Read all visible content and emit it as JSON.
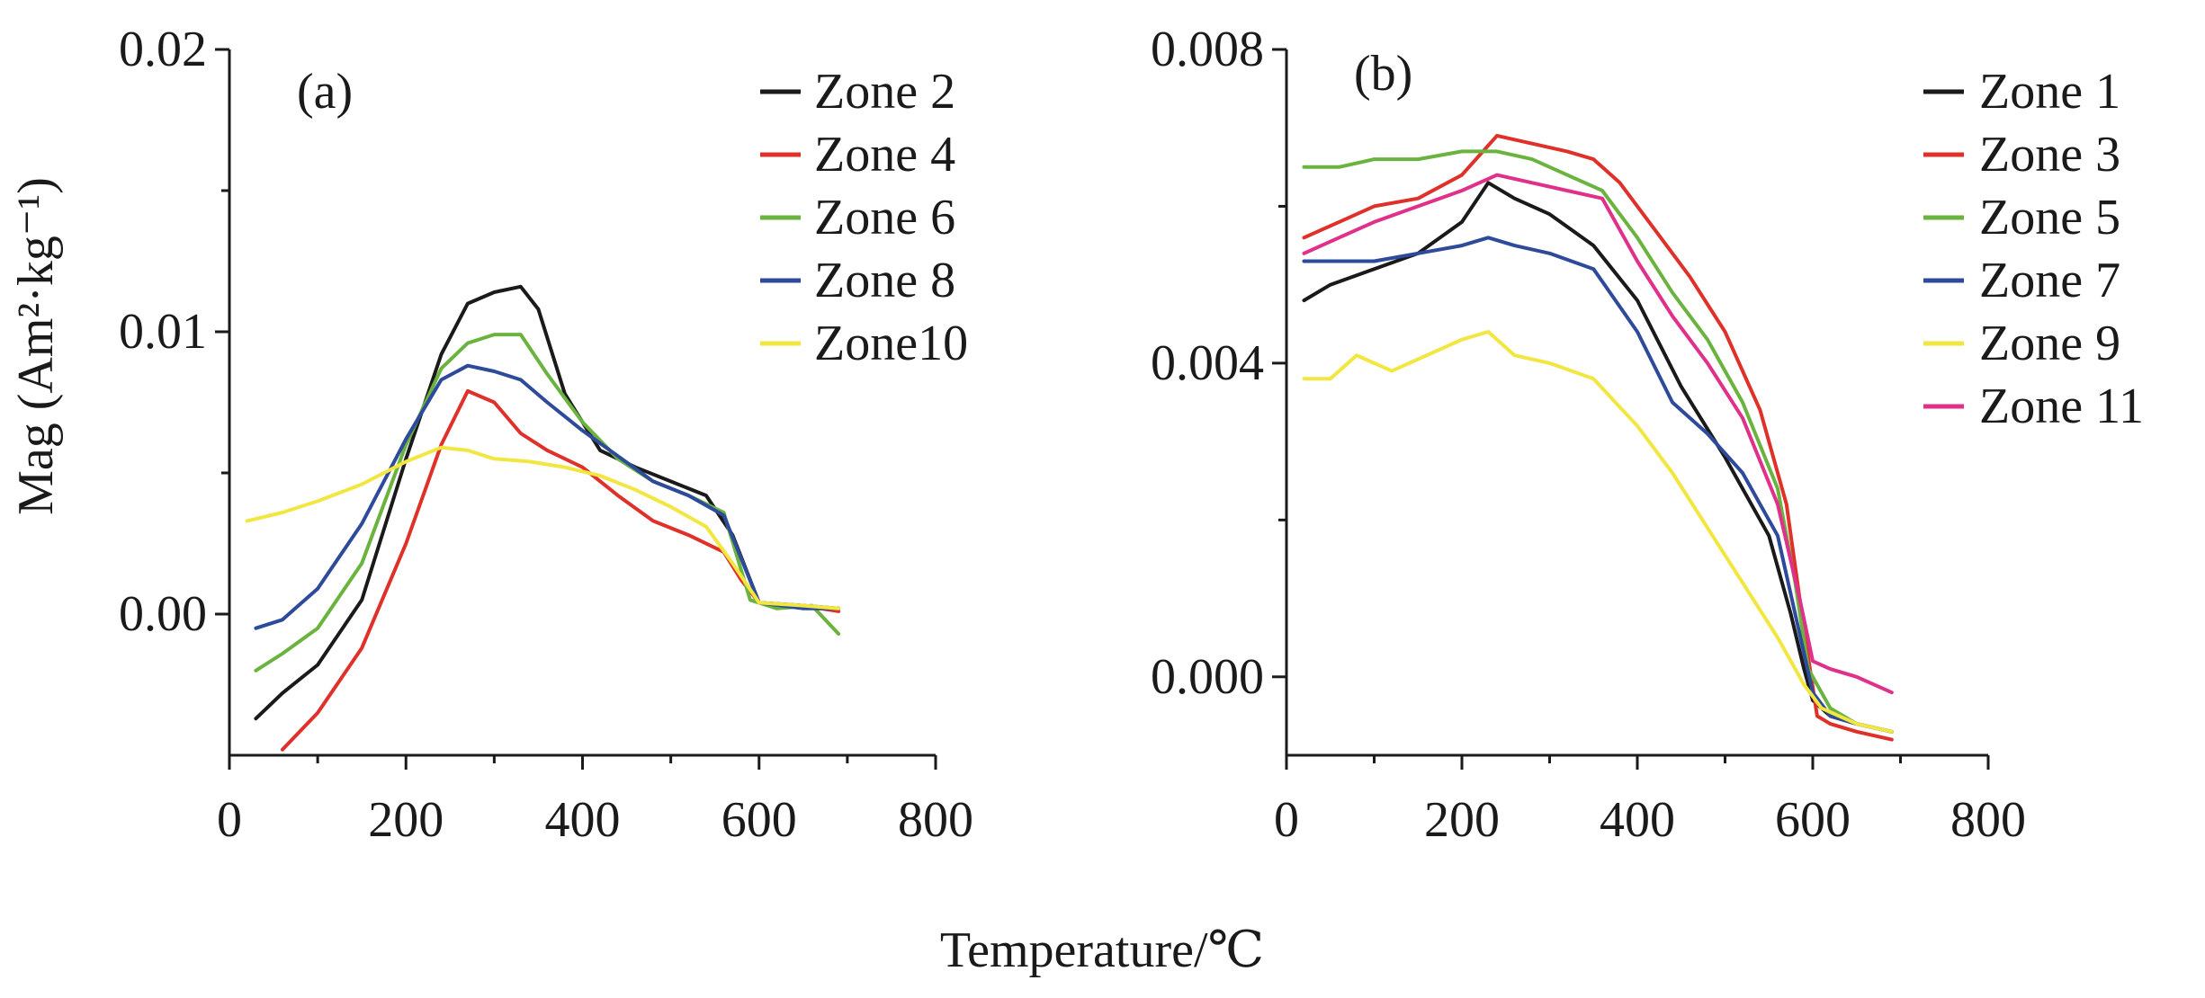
{
  "shared": {
    "xlabel": "Temperature/℃",
    "ylabel": "Mag (Am²·kg⁻¹)"
  },
  "chart_data": [
    {
      "type": "line",
      "panel_label": "(a)",
      "xlim": [
        0,
        800
      ],
      "ylim": [
        -0.005,
        0.02
      ],
      "x_ticks": [
        "0",
        "200",
        "400",
        "600",
        "800"
      ],
      "y_ticks": [
        "0.00",
        "0.01",
        "0.02"
      ],
      "legend_position": "top-right",
      "series": [
        {
          "name": "Zone 2",
          "color": "#1a1a1a",
          "x": [
            30,
            60,
            100,
            150,
            200,
            240,
            270,
            300,
            330,
            350,
            380,
            420,
            460,
            500,
            540,
            570,
            600,
            650,
            690
          ],
          "y": [
            -0.0037,
            -0.0028,
            -0.0018,
            0.0005,
            0.0055,
            0.0092,
            0.011,
            0.0114,
            0.0116,
            0.0108,
            0.0078,
            0.0058,
            0.0052,
            0.0047,
            0.0042,
            0.0028,
            0.0004,
            0.0003,
            0.0002
          ]
        },
        {
          "name": "Zone 4",
          "color": "#e0302a",
          "x": [
            60,
            100,
            150,
            200,
            240,
            270,
            300,
            330,
            360,
            400,
            440,
            480,
            520,
            560,
            580,
            600,
            650,
            690
          ],
          "y": [
            -0.0048,
            -0.0035,
            -0.0012,
            0.0025,
            0.006,
            0.0079,
            0.0075,
            0.0064,
            0.0058,
            0.0052,
            0.0042,
            0.0033,
            0.0028,
            0.0022,
            0.0012,
            0.0004,
            0.0003,
            0.0001
          ]
        },
        {
          "name": "Zone 6",
          "color": "#6bb33f",
          "x": [
            30,
            60,
            100,
            150,
            200,
            240,
            270,
            300,
            330,
            360,
            400,
            440,
            480,
            520,
            560,
            590,
            620,
            660,
            690
          ],
          "y": [
            -0.002,
            -0.0014,
            -0.0005,
            0.0018,
            0.006,
            0.0087,
            0.0096,
            0.0099,
            0.0099,
            0.0085,
            0.0068,
            0.0055,
            0.0047,
            0.0042,
            0.0036,
            0.0005,
            0.0002,
            0.0003,
            -0.0007
          ]
        },
        {
          "name": "Zone 8",
          "color": "#2e4a9a",
          "x": [
            30,
            60,
            100,
            150,
            200,
            240,
            270,
            300,
            330,
            360,
            400,
            440,
            480,
            520,
            560,
            600,
            650,
            690
          ],
          "y": [
            -0.0005,
            -0.0002,
            0.0009,
            0.0032,
            0.0062,
            0.0083,
            0.0088,
            0.0086,
            0.0083,
            0.0075,
            0.0065,
            0.0056,
            0.0047,
            0.0042,
            0.0035,
            0.0004,
            0.0002,
            0.0002
          ]
        },
        {
          "name": "Zone10",
          "color": "#f2e640",
          "x": [
            20,
            60,
            100,
            150,
            200,
            240,
            270,
            300,
            340,
            380,
            420,
            460,
            500,
            540,
            570,
            600,
            650,
            690
          ],
          "y": [
            0.0033,
            0.0036,
            0.004,
            0.0046,
            0.0054,
            0.0059,
            0.0058,
            0.0055,
            0.0054,
            0.0052,
            0.0049,
            0.0044,
            0.0038,
            0.0031,
            0.0018,
            0.0004,
            0.0003,
            0.0002
          ]
        }
      ]
    },
    {
      "type": "line",
      "panel_label": "(b)",
      "xlim": [
        0,
        800
      ],
      "ylim": [
        -0.001,
        0.008
      ],
      "x_ticks": [
        "0",
        "200",
        "400",
        "600",
        "800"
      ],
      "y_ticks": [
        "0.000",
        "0.004",
        "0.008"
      ],
      "legend_position": "top-right",
      "series": [
        {
          "name": "Zone 1",
          "color": "#1a1a1a",
          "x": [
            20,
            50,
            100,
            150,
            200,
            230,
            260,
            300,
            350,
            400,
            450,
            500,
            550,
            575,
            590,
            600,
            620,
            650,
            690
          ],
          "y": [
            0.0048,
            0.005,
            0.0052,
            0.0054,
            0.0058,
            0.0063,
            0.0061,
            0.0059,
            0.0055,
            0.0048,
            0.0037,
            0.0028,
            0.0018,
            0.0008,
            0.0001,
            -0.0003,
            -0.0005,
            -0.0006,
            -0.0007
          ]
        },
        {
          "name": "Zone 3",
          "color": "#e0302a",
          "x": [
            20,
            60,
            100,
            150,
            200,
            240,
            280,
            320,
            350,
            380,
            420,
            460,
            500,
            540,
            570,
            590,
            605,
            620,
            650,
            690
          ],
          "y": [
            0.0056,
            0.0058,
            0.006,
            0.0061,
            0.0064,
            0.0069,
            0.0068,
            0.0067,
            0.0066,
            0.0063,
            0.0057,
            0.0051,
            0.0044,
            0.0034,
            0.0022,
            0.0006,
            -0.0005,
            -0.0006,
            -0.0007,
            -0.0008
          ]
        },
        {
          "name": "Zone 5",
          "color": "#6bb33f",
          "x": [
            20,
            60,
            100,
            150,
            200,
            240,
            280,
            320,
            360,
            400,
            440,
            480,
            520,
            560,
            580,
            595,
            620,
            650,
            690
          ],
          "y": [
            0.0065,
            0.0065,
            0.0066,
            0.0066,
            0.0067,
            0.0067,
            0.0066,
            0.0064,
            0.0062,
            0.0056,
            0.0049,
            0.0043,
            0.0035,
            0.0024,
            0.0012,
            0.0001,
            -0.0004,
            -0.0006,
            -0.0007
          ]
        },
        {
          "name": "Zone 7",
          "color": "#2e4a9a",
          "x": [
            20,
            60,
            100,
            150,
            200,
            230,
            260,
            300,
            350,
            400,
            440,
            480,
            520,
            560,
            580,
            600,
            620,
            650,
            690
          ],
          "y": [
            0.0053,
            0.0053,
            0.0053,
            0.0054,
            0.0055,
            0.0056,
            0.0055,
            0.0054,
            0.0052,
            0.0044,
            0.0035,
            0.0031,
            0.0026,
            0.0018,
            0.0008,
            -0.0002,
            -0.0005,
            -0.0006,
            -0.0007
          ]
        },
        {
          "name": "Zone 9",
          "color": "#f2e640",
          "x": [
            20,
            50,
            80,
            120,
            160,
            200,
            230,
            260,
            300,
            350,
            400,
            440,
            480,
            520,
            560,
            590,
            610,
            650,
            690
          ],
          "y": [
            0.0038,
            0.0038,
            0.0041,
            0.0039,
            0.0041,
            0.0043,
            0.0044,
            0.0041,
            0.004,
            0.0038,
            0.0032,
            0.0026,
            0.0019,
            0.0012,
            0.0005,
            -0.0001,
            -0.0004,
            -0.0006,
            -0.0007
          ]
        },
        {
          "name": "Zone 11",
          "color": "#e0308a",
          "x": [
            20,
            60,
            100,
            150,
            200,
            240,
            280,
            320,
            360,
            400,
            440,
            480,
            520,
            560,
            585,
            600,
            620,
            650,
            690
          ],
          "y": [
            0.0054,
            0.0056,
            0.0058,
            0.006,
            0.0062,
            0.0064,
            0.0063,
            0.0062,
            0.0061,
            0.0053,
            0.0046,
            0.004,
            0.0033,
            0.0022,
            0.001,
            0.0002,
            0.0001,
            0.0,
            -0.0002
          ]
        }
      ]
    }
  ]
}
